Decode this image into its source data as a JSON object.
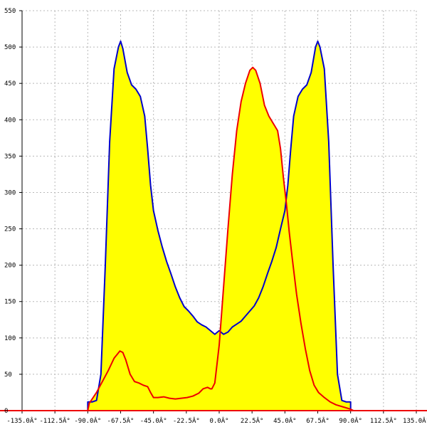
{
  "chart_data": {
    "type": "area",
    "xlim": [
      -135,
      135
    ],
    "ylim": [
      0,
      550
    ],
    "grid": true,
    "x_ticks": [
      -135,
      -112.5,
      -90,
      -67.5,
      -45,
      -22.5,
      0,
      22.5,
      45,
      67.5,
      90,
      112.5,
      135
    ],
    "x_tick_labels": [
      "-135.0Â°",
      "-112.5Â°",
      "-90.0Â°",
      "-67.5Â°",
      "-45.0Â°",
      "-22.5Â°",
      "0.0Â°",
      "22.5Â°",
      "45.0Â°",
      "67.5Â°",
      "90.0Â°",
      "112.5Â°",
      "135.0Â°"
    ],
    "y_ticks": [
      0,
      50,
      100,
      150,
      200,
      250,
      300,
      350,
      400,
      450,
      500,
      550
    ],
    "y_tick_labels": [
      "0",
      "50",
      "100",
      "150",
      "200",
      "250",
      "300",
      "350",
      "400",
      "450",
      "500",
      "550"
    ],
    "fill_color": "#ffff00",
    "series": [
      {
        "color": "#0000cc",
        "points": [
          [
            -90,
            0
          ],
          [
            -90,
            12
          ],
          [
            -87,
            12
          ],
          [
            -84,
            14
          ],
          [
            -81,
            50
          ],
          [
            -78,
            200
          ],
          [
            -75,
            370
          ],
          [
            -72,
            470
          ],
          [
            -69,
            500
          ],
          [
            -67.5,
            508
          ],
          [
            -66,
            498
          ],
          [
            -63,
            465
          ],
          [
            -60,
            448
          ],
          [
            -57,
            442
          ],
          [
            -54,
            432
          ],
          [
            -51,
            405
          ],
          [
            -49,
            360
          ],
          [
            -47,
            310
          ],
          [
            -45,
            275
          ],
          [
            -42,
            248
          ],
          [
            -39,
            225
          ],
          [
            -36,
            205
          ],
          [
            -33,
            188
          ],
          [
            -30,
            170
          ],
          [
            -27,
            155
          ],
          [
            -24,
            143
          ],
          [
            -21,
            137
          ],
          [
            -18,
            130
          ],
          [
            -15,
            122
          ],
          [
            -12,
            118
          ],
          [
            -9,
            115
          ],
          [
            -6,
            110
          ],
          [
            -3,
            105
          ],
          [
            0,
            110
          ],
          [
            3,
            105
          ],
          [
            6,
            108
          ],
          [
            9,
            115
          ],
          [
            12,
            119
          ],
          [
            15,
            123
          ],
          [
            18,
            130
          ],
          [
            21,
            137
          ],
          [
            24,
            144
          ],
          [
            27,
            155
          ],
          [
            30,
            170
          ],
          [
            33,
            188
          ],
          [
            36,
            205
          ],
          [
            39,
            224
          ],
          [
            42,
            250
          ],
          [
            45,
            275
          ],
          [
            47,
            310
          ],
          [
            49,
            360
          ],
          [
            51,
            405
          ],
          [
            54,
            432
          ],
          [
            57,
            442
          ],
          [
            60,
            448
          ],
          [
            63,
            465
          ],
          [
            66,
            500
          ],
          [
            67.5,
            508
          ],
          [
            69,
            500
          ],
          [
            72,
            470
          ],
          [
            75,
            370
          ],
          [
            78,
            200
          ],
          [
            81,
            50
          ],
          [
            84,
            14
          ],
          [
            87,
            12
          ],
          [
            90,
            12
          ],
          [
            90,
            0
          ]
        ]
      },
      {
        "color": "#ee0000",
        "points": [
          [
            -135,
            0
          ],
          [
            -90,
            0
          ],
          [
            -89,
            10
          ],
          [
            -84,
            25
          ],
          [
            -80,
            40
          ],
          [
            -76,
            55
          ],
          [
            -72,
            72
          ],
          [
            -68,
            82
          ],
          [
            -66,
            80
          ],
          [
            -64,
            70
          ],
          [
            -61,
            50
          ],
          [
            -58,
            40
          ],
          [
            -55,
            38
          ],
          [
            -52,
            35
          ],
          [
            -49,
            33
          ],
          [
            -47,
            25
          ],
          [
            -45,
            18
          ],
          [
            -42,
            18
          ],
          [
            -38,
            19
          ],
          [
            -34,
            17
          ],
          [
            -30,
            16
          ],
          [
            -26,
            17
          ],
          [
            -22,
            18
          ],
          [
            -18,
            20
          ],
          [
            -14,
            24
          ],
          [
            -11,
            30
          ],
          [
            -8,
            32
          ],
          [
            -6,
            30
          ],
          [
            -5,
            30
          ],
          [
            -3,
            38
          ],
          [
            0,
            90
          ],
          [
            3,
            170
          ],
          [
            6,
            250
          ],
          [
            9,
            325
          ],
          [
            12,
            385
          ],
          [
            15,
            425
          ],
          [
            18,
            450
          ],
          [
            21,
            468
          ],
          [
            23,
            472
          ],
          [
            25,
            468
          ],
          [
            28,
            450
          ],
          [
            31,
            420
          ],
          [
            34,
            405
          ],
          [
            37,
            395
          ],
          [
            40,
            385
          ],
          [
            42,
            360
          ],
          [
            44,
            320
          ],
          [
            46,
            285
          ],
          [
            48,
            245
          ],
          [
            50,
            210
          ],
          [
            53,
            160
          ],
          [
            56,
            120
          ],
          [
            59,
            85
          ],
          [
            62,
            55
          ],
          [
            65,
            35
          ],
          [
            68,
            25
          ],
          [
            72,
            18
          ],
          [
            76,
            12
          ],
          [
            80,
            8
          ],
          [
            85,
            5
          ],
          [
            90,
            2
          ],
          [
            92,
            0
          ],
          [
            135,
            0
          ]
        ]
      }
    ]
  }
}
